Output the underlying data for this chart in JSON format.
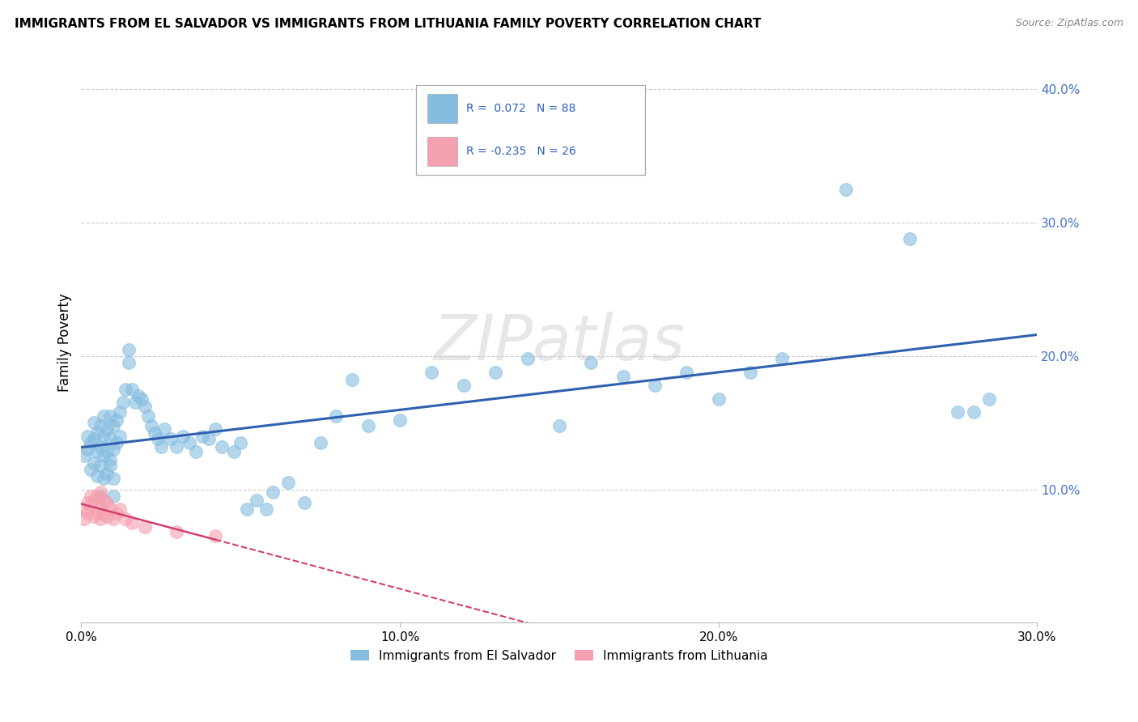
{
  "title": "IMMIGRANTS FROM EL SALVADOR VS IMMIGRANTS FROM LITHUANIA FAMILY POVERTY CORRELATION CHART",
  "source": "Source: ZipAtlas.com",
  "ylabel_label": "Family Poverty",
  "xlim": [
    0.0,
    0.3
  ],
  "ylim": [
    0.0,
    0.42
  ],
  "ytick_vals": [
    0.1,
    0.2,
    0.3,
    0.4
  ],
  "ytick_labels": [
    "10.0%",
    "20.0%",
    "30.0%",
    "40.0%"
  ],
  "xtick_vals": [
    0.0,
    0.1,
    0.2,
    0.3
  ],
  "xtick_labels": [
    "0.0%",
    "10.0%",
    "20.0%",
    "30.0%"
  ],
  "legend_bottom": [
    "Immigrants from El Salvador",
    "Immigrants from Lithuania"
  ],
  "R_el_salvador": 0.072,
  "N_el_salvador": 88,
  "R_lithuania": -0.235,
  "N_lithuania": 26,
  "color_el_salvador": "#85bde0",
  "color_lithuania": "#f5a0b0",
  "line_color_el_salvador": "#3060b0",
  "line_color_lithuania": "#d04070",
  "watermark": "ZIPatlas",
  "es_x": [
    0.001,
    0.002,
    0.002,
    0.003,
    0.003,
    0.004,
    0.004,
    0.004,
    0.005,
    0.005,
    0.005,
    0.006,
    0.006,
    0.006,
    0.007,
    0.007,
    0.007,
    0.008,
    0.008,
    0.009,
    0.009,
    0.009,
    0.01,
    0.01,
    0.011,
    0.011,
    0.012,
    0.012,
    0.013,
    0.014,
    0.015,
    0.015,
    0.016,
    0.017,
    0.018,
    0.019,
    0.02,
    0.021,
    0.022,
    0.023,
    0.024,
    0.025,
    0.026,
    0.028,
    0.03,
    0.032,
    0.034,
    0.036,
    0.038,
    0.04,
    0.042,
    0.044,
    0.048,
    0.05,
    0.052,
    0.055,
    0.058,
    0.06,
    0.065,
    0.07,
    0.075,
    0.08,
    0.085,
    0.09,
    0.1,
    0.11,
    0.12,
    0.13,
    0.14,
    0.15,
    0.16,
    0.17,
    0.18,
    0.19,
    0.2,
    0.21,
    0.22,
    0.24,
    0.26,
    0.275,
    0.28,
    0.285,
    0.006,
    0.007,
    0.008,
    0.009,
    0.01,
    0.01
  ],
  "es_y": [
    0.125,
    0.13,
    0.14,
    0.115,
    0.135,
    0.12,
    0.138,
    0.15,
    0.11,
    0.128,
    0.142,
    0.118,
    0.132,
    0.148,
    0.125,
    0.14,
    0.155,
    0.128,
    0.145,
    0.122,
    0.138,
    0.155,
    0.13,
    0.148,
    0.135,
    0.152,
    0.14,
    0.158,
    0.165,
    0.175,
    0.195,
    0.205,
    0.175,
    0.165,
    0.17,
    0.168,
    0.162,
    0.155,
    0.148,
    0.142,
    0.138,
    0.132,
    0.145,
    0.138,
    0.132,
    0.14,
    0.135,
    0.128,
    0.14,
    0.138,
    0.145,
    0.132,
    0.128,
    0.135,
    0.085,
    0.092,
    0.085,
    0.098,
    0.105,
    0.09,
    0.135,
    0.155,
    0.182,
    0.148,
    0.152,
    0.188,
    0.178,
    0.188,
    0.198,
    0.148,
    0.195,
    0.185,
    0.178,
    0.188,
    0.168,
    0.188,
    0.198,
    0.325,
    0.288,
    0.158,
    0.158,
    0.168,
    0.095,
    0.108,
    0.112,
    0.118,
    0.095,
    0.108
  ],
  "lt_x": [
    0.001,
    0.001,
    0.002,
    0.002,
    0.003,
    0.003,
    0.004,
    0.004,
    0.005,
    0.005,
    0.006,
    0.006,
    0.006,
    0.007,
    0.007,
    0.008,
    0.008,
    0.009,
    0.01,
    0.011,
    0.012,
    0.014,
    0.016,
    0.02,
    0.03,
    0.042
  ],
  "lt_y": [
    0.085,
    0.078,
    0.09,
    0.082,
    0.088,
    0.095,
    0.08,
    0.092,
    0.082,
    0.095,
    0.078,
    0.088,
    0.098,
    0.082,
    0.092,
    0.08,
    0.09,
    0.085,
    0.078,
    0.082,
    0.085,
    0.078,
    0.075,
    0.072,
    0.068,
    0.065
  ]
}
